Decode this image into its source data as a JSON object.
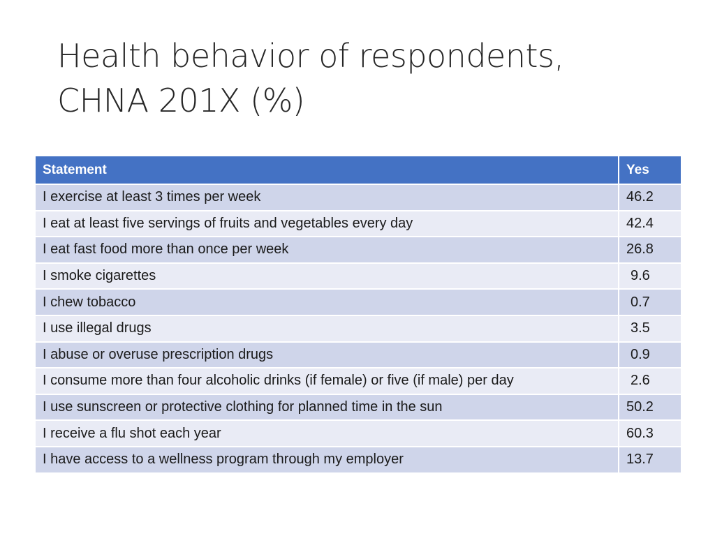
{
  "slide": {
    "title_line1": "Health behavior of respondents,",
    "title_line2": "CHNA 201X (%)"
  },
  "table": {
    "headers": [
      "Statement",
      "Yes"
    ],
    "rows": [
      {
        "statement": "I exercise at least 3 times per week",
        "yes": "46.2"
      },
      {
        "statement": "I eat at least five servings of fruits and vegetables every day",
        "yes": "42.4"
      },
      {
        "statement": "I eat fast food more than once per week",
        "yes": "26.8"
      },
      {
        "statement": "I smoke cigarettes",
        "yes": "9.6"
      },
      {
        "statement": "I chew tobacco",
        "yes": "0.7"
      },
      {
        "statement": "I use illegal drugs",
        "yes": "3.5"
      },
      {
        "statement": "I abuse or overuse prescription drugs",
        "yes": "0.9"
      },
      {
        "statement": "I consume more than four alcoholic drinks (if female) or five (if male) per day",
        "yes": "2.6"
      },
      {
        "statement": "I use sunscreen or protective clothing for planned time in the sun",
        "yes": "50.2"
      },
      {
        "statement": "I receive a flu shot each year",
        "yes": "60.3"
      },
      {
        "statement": "I have access to a wellness program through my employer",
        "yes": "13.7"
      }
    ]
  },
  "colors": {
    "header_bg": "#4472c4",
    "row_dark": "#cfd5ea",
    "row_light": "#e9ebf5"
  }
}
